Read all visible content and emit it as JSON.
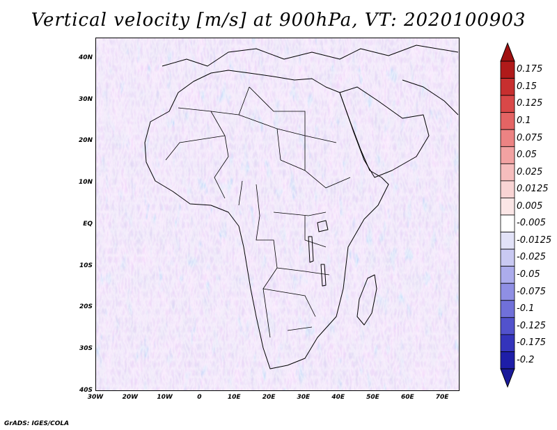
{
  "title": "Vertical velocity [m/s] at 900hPa, VT: 2020100903",
  "credit": "GrADS: IGES/COLA",
  "map": {
    "region": "Africa",
    "lon_range": [
      -30,
      75
    ],
    "lat_range": [
      -40,
      45
    ],
    "lat_ticks": [
      {
        "lat": 40,
        "label": "40N"
      },
      {
        "lat": 30,
        "label": "30N"
      },
      {
        "lat": 20,
        "label": "20N"
      },
      {
        "lat": 10,
        "label": "10N"
      },
      {
        "lat": 0,
        "label": "EQ"
      },
      {
        "lat": -10,
        "label": "10S"
      },
      {
        "lat": -20,
        "label": "20S"
      },
      {
        "lat": -30,
        "label": "30S"
      },
      {
        "lat": -40,
        "label": "40S"
      }
    ],
    "lon_ticks": [
      {
        "lon": -30,
        "label": "30W"
      },
      {
        "lon": -20,
        "label": "20W"
      },
      {
        "lon": -10,
        "label": "10W"
      },
      {
        "lon": 0,
        "label": "0"
      },
      {
        "lon": 10,
        "label": "10E"
      },
      {
        "lon": 20,
        "label": "20E"
      },
      {
        "lon": 30,
        "label": "30E"
      },
      {
        "lon": 40,
        "label": "40E"
      },
      {
        "lon": 50,
        "label": "50E"
      },
      {
        "lon": 60,
        "label": "60E"
      },
      {
        "lon": 70,
        "label": "70E"
      }
    ]
  },
  "colorbar": {
    "levels": [
      {
        "label": "0.175",
        "color": "#b01a1a"
      },
      {
        "label": "0.15",
        "color": "#c72f2f"
      },
      {
        "label": "0.125",
        "color": "#d94848"
      },
      {
        "label": "0.1",
        "color": "#e46464"
      },
      {
        "label": "0.075",
        "color": "#ec8383"
      },
      {
        "label": "0.05",
        "color": "#f2a2a2"
      },
      {
        "label": "0.025",
        "color": "#f6bdbd"
      },
      {
        "label": "0.0125",
        "color": "#f9d4d4"
      },
      {
        "label": "0.005",
        "color": "#fbe6e6"
      },
      {
        "label": "-0.005",
        "color": "#ffffff"
      },
      {
        "label": "-0.0125",
        "color": "#e2e2f8"
      },
      {
        "label": "-0.025",
        "color": "#c9c9f2"
      },
      {
        "label": "-0.05",
        "color": "#acacec"
      },
      {
        "label": "-0.075",
        "color": "#8f8fe4"
      },
      {
        "label": "-0.1",
        "color": "#7070d9"
      },
      {
        "label": "-0.125",
        "color": "#5252cc"
      },
      {
        "label": "-0.175",
        "color": "#3434bb"
      },
      {
        "label": "-0.2",
        "color": "#1e1ea8"
      }
    ],
    "top_color": "#a01010",
    "bottom_color": "#1a1a9a"
  }
}
